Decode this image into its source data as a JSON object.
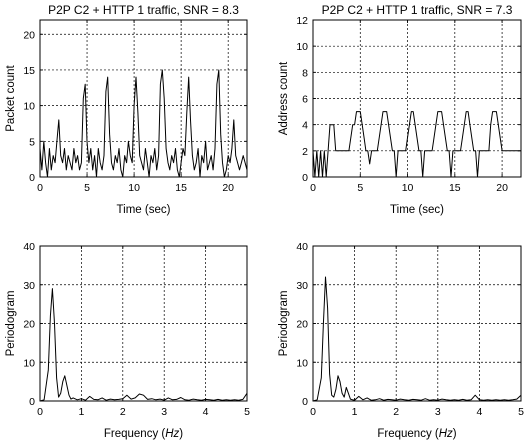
{
  "chart_data": [
    {
      "type": "line",
      "title": "P2P C2 + HTTP 1 traffic, SNR = 8.3",
      "xlabel": "Time (sec)",
      "xlabel_parts": [
        "Time (sec)"
      ],
      "ylabel": "Packet count",
      "xlim": [
        0,
        22
      ],
      "ylim": [
        0,
        22
      ],
      "xticks": [
        0,
        5,
        10,
        15,
        20
      ],
      "yticks": [
        0,
        5,
        10,
        15,
        20
      ],
      "grid": true,
      "series": [
        {
          "x": [
            0,
            0.2,
            0.4,
            0.6,
            0.8,
            1.0,
            1.2,
            1.4,
            1.6,
            1.8,
            2.0,
            2.2,
            2.4,
            2.6,
            2.8,
            3.0,
            3.2,
            3.4,
            3.6,
            3.8,
            4.0,
            4.2,
            4.4,
            4.6,
            4.8,
            5.0,
            5.2,
            5.4,
            5.6,
            5.8,
            6.0,
            6.2,
            6.4,
            6.6,
            6.8,
            7.0,
            7.2,
            7.4,
            7.6,
            7.8,
            8.0,
            8.2,
            8.4,
            8.6,
            8.8,
            9.0,
            9.2,
            9.4,
            9.6,
            9.8,
            10.0,
            10.2,
            10.4,
            10.6,
            10.8,
            11.0,
            11.2,
            11.4,
            11.6,
            11.8,
            12.0,
            12.2,
            12.4,
            12.6,
            12.8,
            13.0,
            13.2,
            13.4,
            13.6,
            13.8,
            14.0,
            14.2,
            14.4,
            14.6,
            14.8,
            15.0,
            15.2,
            15.4,
            15.6,
            15.8,
            16.0,
            16.2,
            16.4,
            16.6,
            16.8,
            17.0,
            17.2,
            17.4,
            17.6,
            17.8,
            18.0,
            18.2,
            18.4,
            18.6,
            18.8,
            19.0,
            19.2,
            19.4,
            19.6,
            19.8,
            20.0,
            20.2,
            20.4,
            20.6,
            20.8,
            21.0,
            21.2,
            21.4,
            21.6,
            21.8,
            22.0
          ],
          "values": [
            4,
            1,
            5,
            2,
            0,
            4,
            1,
            3,
            2,
            5,
            8,
            3,
            2,
            4,
            1,
            3,
            2,
            1,
            4,
            2,
            3,
            1,
            2,
            11,
            13,
            5,
            2,
            4,
            1,
            3,
            0,
            4,
            2,
            1,
            3,
            12,
            14,
            6,
            2,
            1,
            3,
            2,
            4,
            1,
            0,
            3,
            2,
            5,
            3,
            2,
            10,
            14,
            9,
            3,
            2,
            1,
            4,
            2,
            0,
            3,
            2,
            4,
            1,
            3,
            13,
            15,
            11,
            4,
            2,
            1,
            3,
            2,
            4,
            1,
            0,
            2,
            4,
            3,
            9,
            14,
            8,
            3,
            1,
            2,
            4,
            0,
            3,
            2,
            5,
            1,
            2,
            3,
            1,
            4,
            13,
            15,
            6,
            2,
            0,
            1,
            3,
            2,
            4,
            8,
            3,
            2,
            1,
            2,
            3,
            2,
            1
          ]
        }
      ]
    },
    {
      "type": "line",
      "title": "P2P C2 + HTTP 1 traffic, SNR = 7.3",
      "xlabel": "Time (sec)",
      "xlabel_parts": [
        "Time (sec)"
      ],
      "ylabel": "Address count",
      "xlim": [
        0,
        22
      ],
      "ylim": [
        0,
        12
      ],
      "xticks": [
        0,
        5,
        10,
        15,
        20
      ],
      "yticks": [
        0,
        2,
        4,
        6,
        8,
        10,
        12
      ],
      "grid": true,
      "series": [
        {
          "x": [
            0,
            0.2,
            0.4,
            0.6,
            0.8,
            1.0,
            1.2,
            1.4,
            1.6,
            1.8,
            2.0,
            2.2,
            2.4,
            2.6,
            2.8,
            3.0,
            3.2,
            3.4,
            3.6,
            3.8,
            4.0,
            4.2,
            4.4,
            4.6,
            4.8,
            5.0,
            5.2,
            5.4,
            5.6,
            5.8,
            6.0,
            6.2,
            6.4,
            6.6,
            6.8,
            7.0,
            7.2,
            7.4,
            7.6,
            7.8,
            8.0,
            8.2,
            8.4,
            8.6,
            8.8,
            9.0,
            9.2,
            9.4,
            9.6,
            9.8,
            10.0,
            10.2,
            10.4,
            10.6,
            10.8,
            11.0,
            11.2,
            11.4,
            11.6,
            11.8,
            12.0,
            12.2,
            12.4,
            12.6,
            12.8,
            13.0,
            13.2,
            13.4,
            13.6,
            13.8,
            14.0,
            14.2,
            14.4,
            14.6,
            14.8,
            15.0,
            15.2,
            15.4,
            15.6,
            15.8,
            16.0,
            16.2,
            16.4,
            16.6,
            16.8,
            17.0,
            17.2,
            17.4,
            17.6,
            17.8,
            18.0,
            18.2,
            18.4,
            18.6,
            18.8,
            19.0,
            19.2,
            19.4,
            19.6,
            19.8,
            20.0,
            20.2,
            20.4,
            20.6,
            20.8,
            21.0,
            21.2,
            21.4,
            21.6,
            21.8,
            22.0
          ],
          "values": [
            2,
            0,
            2,
            0,
            2,
            0,
            2,
            0,
            2,
            4,
            4,
            4,
            2,
            2,
            2,
            2,
            2,
            2,
            2,
            2,
            3,
            4,
            4,
            5,
            5,
            5,
            4,
            3,
            2,
            2,
            1,
            2,
            2,
            2,
            2,
            3,
            4,
            5,
            5,
            5,
            4,
            3,
            2,
            2,
            0,
            2,
            2,
            2,
            2,
            2,
            3,
            4,
            5,
            5,
            4,
            3,
            2,
            2,
            0,
            2,
            2,
            2,
            2,
            2,
            3,
            4,
            5,
            5,
            5,
            4,
            3,
            2,
            2,
            0,
            2,
            2,
            2,
            2,
            2,
            3,
            4,
            5,
            5,
            4,
            3,
            2,
            2,
            0,
            2,
            2,
            2,
            2,
            2,
            2,
            4,
            5,
            5,
            5,
            4,
            3,
            2,
            2,
            2,
            2,
            2,
            2,
            2,
            2,
            2,
            2,
            2
          ]
        }
      ]
    },
    {
      "type": "line",
      "title": "",
      "xlabel": "Frequency (Hz)",
      "xlabel_parts": [
        "Frequency (",
        "Hz",
        ")"
      ],
      "ylabel": "Periodogram",
      "xlim": [
        0,
        5
      ],
      "ylim": [
        0,
        40
      ],
      "xticks": [
        0,
        1,
        2,
        3,
        4,
        5
      ],
      "yticks": [
        0,
        10,
        20,
        30,
        40
      ],
      "grid": true,
      "series": [
        {
          "x": [
            0,
            0.1,
            0.2,
            0.25,
            0.3,
            0.35,
            0.4,
            0.45,
            0.5,
            0.55,
            0.6,
            0.65,
            0.7,
            0.75,
            0.8,
            0.9,
            1.0,
            1.1,
            1.2,
            1.3,
            1.4,
            1.5,
            1.6,
            1.7,
            1.8,
            1.9,
            2.0,
            2.1,
            2.2,
            2.3,
            2.4,
            2.5,
            2.6,
            2.7,
            2.8,
            2.9,
            3.0,
            3.1,
            3.2,
            3.3,
            3.4,
            3.5,
            3.6,
            3.7,
            3.8,
            3.9,
            4.0,
            4.1,
            4.2,
            4.3,
            4.4,
            4.5,
            4.6,
            4.7,
            4.8,
            4.9,
            5.0
          ],
          "values": [
            0,
            0.3,
            8,
            22,
            29,
            20,
            6,
            1,
            2,
            5,
            6.5,
            4,
            1.5,
            0.5,
            0.8,
            0.3,
            0.6,
            0.2,
            1.2,
            0.4,
            0.3,
            0.8,
            0.2,
            0.5,
            0.3,
            0.4,
            0.6,
            1.5,
            0.5,
            0.8,
            1.8,
            1.5,
            0.4,
            0.6,
            0.3,
            0.5,
            0.2,
            0.8,
            0.3,
            0.4,
            0.9,
            0.3,
            0.2,
            0.5,
            0.3,
            0.2,
            0.4,
            0.3,
            0.2,
            0.4,
            0.2,
            0.3,
            0.2,
            0.3,
            0.2,
            0.4,
            2
          ]
        }
      ]
    },
    {
      "type": "line",
      "title": "",
      "xlabel": "Frequency (Hz)",
      "xlabel_parts": [
        "Frequency (",
        "Hz",
        ")"
      ],
      "ylabel": "Periodogram",
      "xlim": [
        0,
        5
      ],
      "ylim": [
        0,
        40
      ],
      "xticks": [
        0,
        1,
        2,
        3,
        4,
        5
      ],
      "yticks": [
        0,
        10,
        20,
        30,
        40
      ],
      "grid": true,
      "series": [
        {
          "x": [
            0,
            0.1,
            0.2,
            0.25,
            0.3,
            0.35,
            0.4,
            0.45,
            0.5,
            0.55,
            0.6,
            0.65,
            0.7,
            0.75,
            0.8,
            0.85,
            0.9,
            0.95,
            1.0,
            1.1,
            1.2,
            1.3,
            1.4,
            1.5,
            1.6,
            1.7,
            1.8,
            1.9,
            2.0,
            2.1,
            2.2,
            2.3,
            2.4,
            2.5,
            2.6,
            2.7,
            2.8,
            2.9,
            3.0,
            3.1,
            3.2,
            3.3,
            3.4,
            3.5,
            3.6,
            3.7,
            3.8,
            3.9,
            4.0,
            4.1,
            4.2,
            4.3,
            4.4,
            4.5,
            4.6,
            4.7,
            4.8,
            4.9,
            5.0
          ],
          "values": [
            0,
            0.3,
            6,
            20,
            32,
            24,
            7,
            1.5,
            1,
            3,
            6.5,
            5,
            2,
            1,
            3.5,
            2,
            0.5,
            0.3,
            0.2,
            1.2,
            0.3,
            0.8,
            0.2,
            0.3,
            0.6,
            0.2,
            0.4,
            0.3,
            0.2,
            0.5,
            0.3,
            0.2,
            0.4,
            0.3,
            0.2,
            0.6,
            0.2,
            0.3,
            0.2,
            0.5,
            0.3,
            0.2,
            0.3,
            0.2,
            0.4,
            0.2,
            0.3,
            1.5,
            0.3,
            0.2,
            0.3,
            0.2,
            0.3,
            0.2,
            0.3,
            0.2,
            0.3,
            0.5,
            1.5
          ]
        }
      ]
    }
  ]
}
